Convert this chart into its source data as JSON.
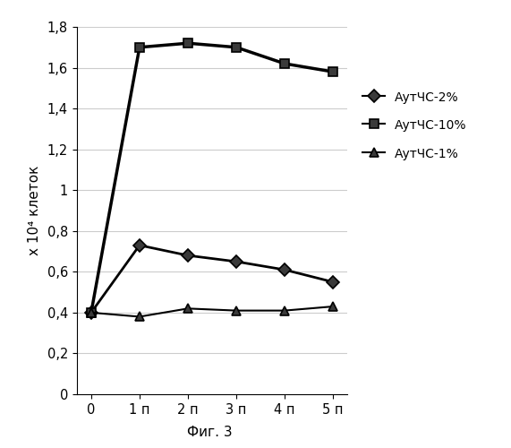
{
  "x_labels": [
    "0",
    "1 п",
    "2 п",
    "3 п",
    "4 п",
    "5 п"
  ],
  "x_values": [
    0,
    1,
    2,
    3,
    4,
    5
  ],
  "series": [
    {
      "label": "АутЧС-2%",
      "values": [
        0.4,
        0.73,
        0.68,
        0.65,
        0.61,
        0.55
      ],
      "color": "#000000",
      "marker": "D",
      "linewidth": 2.0,
      "markersize": 7
    },
    {
      "label": "АутЧС-10%",
      "values": [
        0.4,
        1.7,
        1.72,
        1.7,
        1.62,
        1.58
      ],
      "color": "#000000",
      "marker": "s",
      "linewidth": 2.5,
      "markersize": 7
    },
    {
      "label": "АутЧС-1%",
      "values": [
        0.4,
        0.38,
        0.42,
        0.41,
        0.41,
        0.43
      ],
      "color": "#000000",
      "marker": "^",
      "linewidth": 1.5,
      "markersize": 7
    }
  ],
  "ylabel": "x 10⁴ клеток",
  "xlabel": "Фиг. 3",
  "ylim": [
    0,
    1.8
  ],
  "yticks": [
    0,
    0.2,
    0.4,
    0.6,
    0.8,
    1.0,
    1.2,
    1.4,
    1.6,
    1.8
  ],
  "ytick_labels": [
    "0",
    "0,2",
    "0,4",
    "0,6",
    "0,8",
    "1",
    "1,2",
    "1,4",
    "1,6",
    "1,8"
  ],
  "background_color": "#ffffff",
  "grid_color": "#cccccc"
}
